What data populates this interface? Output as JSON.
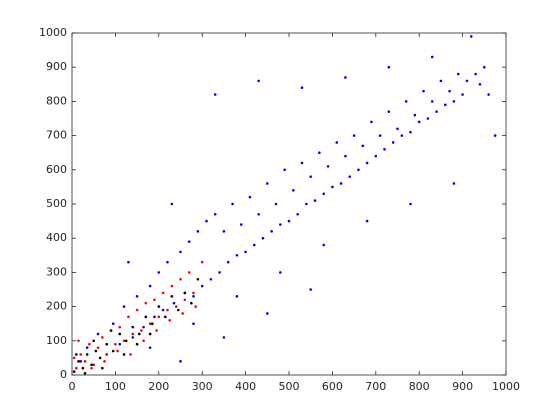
{
  "chart_data": {
    "type": "scatter",
    "xlim": [
      0,
      1000
    ],
    "ylim": [
      0,
      1000
    ],
    "xticks": [
      0,
      100,
      200,
      300,
      400,
      500,
      600,
      700,
      800,
      900,
      1000
    ],
    "yticks": [
      0,
      100,
      200,
      300,
      400,
      500,
      600,
      700,
      800,
      900,
      1000
    ],
    "grid": false,
    "series": [
      {
        "color": "#0000ff",
        "x": [
          20,
          35,
          50,
          60,
          80,
          95,
          110,
          120,
          140,
          150,
          165,
          180,
          190,
          200,
          210,
          220,
          235,
          250,
          260,
          270,
          280,
          290,
          300,
          310,
          320,
          330,
          340,
          350,
          360,
          370,
          380,
          390,
          400,
          410,
          420,
          430,
          440,
          450,
          460,
          470,
          480,
          490,
          500,
          510,
          520,
          530,
          540,
          550,
          560,
          570,
          580,
          590,
          600,
          610,
          620,
          630,
          640,
          650,
          660,
          670,
          680,
          690,
          700,
          710,
          720,
          730,
          740,
          750,
          760,
          770,
          780,
          790,
          800,
          810,
          820,
          830,
          840,
          850,
          860,
          870,
          880,
          890,
          900,
          910,
          920,
          930,
          940,
          950,
          960,
          975,
          130,
          180,
          230,
          280,
          330,
          380,
          430,
          480,
          530,
          580,
          630,
          680,
          730,
          780,
          830,
          880,
          250,
          350,
          450,
          550
        ],
        "values": [
          40,
          80,
          30,
          120,
          60,
          150,
          90,
          200,
          110,
          230,
          140,
          260,
          170,
          300,
          190,
          330,
          210,
          360,
          240,
          390,
          230,
          420,
          260,
          450,
          280,
          470,
          300,
          420,
          330,
          500,
          350,
          440,
          360,
          520,
          380,
          470,
          400,
          560,
          420,
          500,
          440,
          600,
          450,
          540,
          470,
          620,
          500,
          580,
          510,
          650,
          530,
          610,
          550,
          680,
          560,
          640,
          580,
          700,
          600,
          670,
          620,
          740,
          640,
          700,
          660,
          770,
          680,
          720,
          700,
          800,
          710,
          760,
          740,
          830,
          750,
          800,
          770,
          860,
          790,
          830,
          800,
          880,
          820,
          860,
          990,
          880,
          850,
          900,
          820,
          700,
          330,
          80,
          500,
          150,
          820,
          230,
          860,
          300,
          840,
          380,
          870,
          450,
          900,
          500,
          930,
          560,
          40,
          110,
          180,
          250
        ]
      },
      {
        "color": "#ff0000",
        "x": [
          5,
          10,
          20,
          30,
          40,
          50,
          60,
          70,
          80,
          90,
          100,
          110,
          120,
          130,
          140,
          150,
          160,
          170,
          180,
          190,
          200,
          210,
          220,
          230,
          240,
          250,
          260,
          270,
          280,
          300,
          15,
          45,
          75,
          105,
          135,
          165,
          195,
          225,
          255,
          285
        ],
        "values": [
          50,
          20,
          60,
          40,
          90,
          30,
          80,
          110,
          60,
          130,
          90,
          140,
          100,
          170,
          120,
          190,
          130,
          210,
          150,
          220,
          170,
          240,
          190,
          260,
          200,
          280,
          220,
          300,
          240,
          330,
          100,
          20,
          40,
          70,
          60,
          100,
          130,
          160,
          180,
          200
        ]
      },
      {
        "color": "#000000",
        "x": [
          5,
          15,
          25,
          35,
          45,
          55,
          65,
          80,
          95,
          110,
          125,
          140,
          155,
          170,
          185,
          200,
          215,
          230,
          245,
          260,
          275,
          290,
          10,
          30,
          50,
          70,
          90,
          120,
          150,
          180
        ],
        "values": [
          10,
          40,
          20,
          60,
          30,
          70,
          50,
          90,
          70,
          120,
          100,
          140,
          120,
          170,
          150,
          200,
          170,
          230,
          190,
          240,
          210,
          280,
          60,
          5,
          100,
          20,
          130,
          60,
          90,
          120
        ]
      }
    ]
  }
}
